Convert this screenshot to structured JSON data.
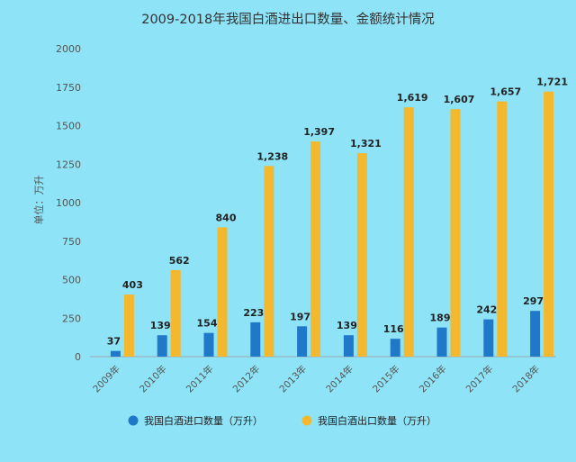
{
  "chart_data": {
    "type": "bar",
    "title": "2009-2018年我国白酒进出口数量、金额统计情况",
    "ylabel": "单位：万升",
    "xlabel": "",
    "categories": [
      "2009年",
      "2010年",
      "2011年",
      "2012年",
      "2013年",
      "2014年",
      "2015年",
      "2016年",
      "2017年",
      "2018年"
    ],
    "ylim": [
      0,
      2000
    ],
    "yticks": [
      0,
      250,
      500,
      750,
      1000,
      1250,
      1500,
      1750,
      2000
    ],
    "ytick_labels": [
      "0",
      "250",
      "500",
      "750",
      "1000",
      "1250",
      "1500",
      "1750",
      "2000"
    ],
    "grid": false,
    "legend_position": "bottom",
    "series": [
      {
        "name": "我国白酒进口数量（万升）",
        "color": "#1f78c8",
        "values": [
          37,
          139,
          154,
          223,
          197,
          139,
          116,
          189,
          242,
          297
        ],
        "labels": [
          "37",
          "139",
          "154",
          "223",
          "197",
          "139",
          "116",
          "189",
          "242",
          "297"
        ]
      },
      {
        "name": "我国白酒出口数量（万升）",
        "color": "#f4b82e",
        "values": [
          403,
          562,
          840,
          1238,
          1397,
          1321,
          1619,
          1607,
          1657,
          1721
        ],
        "labels": [
          "403",
          "562",
          "840",
          "1,238",
          "1,397",
          "1,321",
          "1,619",
          "1,607",
          "1,657",
          "1,721"
        ]
      }
    ]
  }
}
